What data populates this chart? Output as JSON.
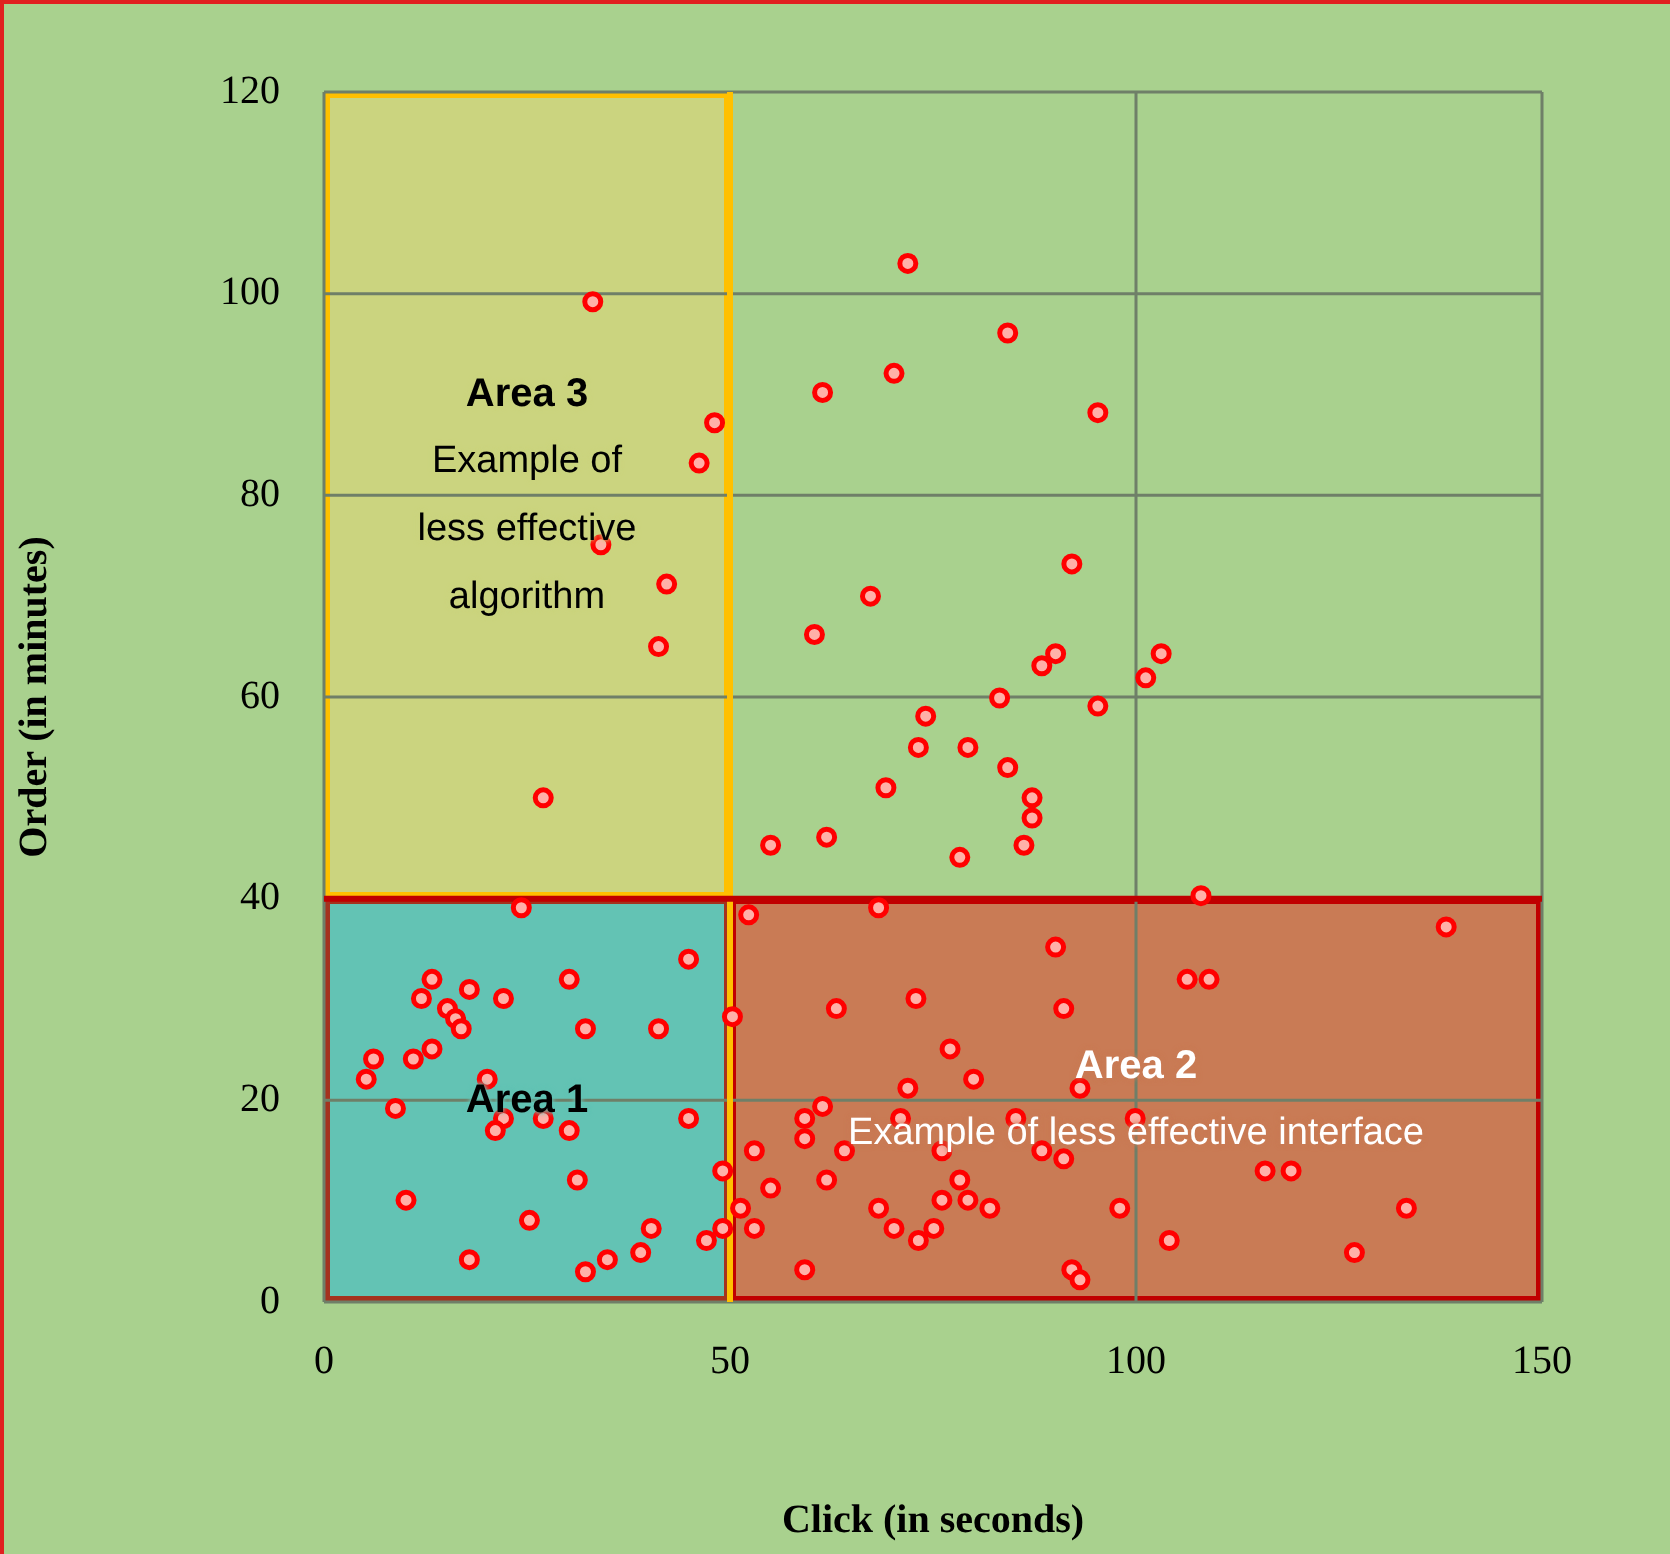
{
  "chart_data": {
    "type": "scatter",
    "xlabel": "Click (in seconds)",
    "ylabel": "Order (in minutes)",
    "x": [
      33.1,
      48.1,
      46.2,
      34.1,
      42.2,
      41.2,
      27.0,
      71.9,
      84.2,
      70.2,
      61.4,
      95.3,
      92.1,
      67.3,
      60.4,
      90.1,
      88.4,
      103.1,
      101.2,
      83.2,
      95.3,
      74.1,
      73.2,
      79.3,
      84.2,
      69.2,
      87.2,
      87.2,
      55.0,
      61.9,
      78.3,
      86.2,
      108.0,
      24.3,
      44.9,
      13.3,
      30.2,
      12.0,
      17.9,
      22.1,
      15.2,
      16.2,
      16.9,
      32.2,
      41.2,
      6.1,
      11.0,
      13.3,
      5.2,
      20.1,
      8.8,
      22.1,
      27.0,
      44.9,
      21.1,
      30.2,
      31.2,
      49.1,
      10.1,
      25.3,
      40.3,
      49.1,
      47.1,
      39.0,
      17.9,
      34.9,
      32.2,
      52.3,
      68.3,
      90.1,
      50.3,
      63.1,
      72.9,
      91.1,
      77.1,
      80.0,
      71.9,
      93.1,
      61.4,
      59.2,
      71.0,
      85.2,
      99.9,
      59.2,
      53.0,
      64.1,
      76.1,
      88.4,
      91.1,
      55.0,
      61.9,
      78.3,
      76.1,
      79.3,
      82.0,
      68.3,
      98.0,
      51.3,
      53.0,
      70.2,
      75.1,
      73.2,
      59.2,
      92.1,
      93.1,
      138.2,
      106.3,
      109.0,
      115.9,
      119.1,
      133.3,
      104.1,
      126.9
    ],
    "values": [
      99.2,
      87.2,
      83.2,
      75.1,
      71.2,
      65.0,
      50.0,
      103.0,
      96.1,
      92.1,
      90.2,
      88.2,
      73.2,
      70.0,
      66.2,
      64.3,
      63.1,
      64.3,
      61.9,
      59.9,
      59.1,
      58.1,
      55.0,
      55.0,
      53.0,
      51.0,
      50.0,
      48.0,
      45.3,
      46.1,
      44.1,
      45.3,
      40.3,
      39.1,
      34.0,
      32.0,
      32.0,
      30.1,
      31.0,
      30.1,
      29.1,
      28.1,
      27.1,
      27.1,
      27.1,
      24.1,
      24.1,
      25.1,
      22.1,
      22.1,
      19.2,
      18.2,
      18.2,
      18.2,
      17.0,
      17.0,
      12.1,
      13.0,
      10.1,
      8.1,
      7.3,
      7.3,
      6.1,
      4.9,
      4.2,
      4.2,
      3.0,
      38.4,
      39.1,
      35.2,
      28.3,
      29.1,
      30.1,
      29.1,
      25.1,
      22.1,
      21.2,
      21.2,
      19.4,
      18.2,
      18.2,
      18.2,
      18.2,
      16.2,
      15.0,
      15.0,
      15.0,
      15.0,
      14.2,
      11.3,
      12.1,
      12.1,
      10.1,
      10.1,
      9.3,
      9.3,
      9.3,
      9.3,
      7.3,
      7.3,
      7.3,
      6.1,
      3.2,
      3.2,
      2.2,
      37.2,
      32.0,
      32.0,
      13.0,
      13.0,
      9.3,
      6.1,
      4.9
    ],
    "color": "#ff0000",
    "marker": "circle",
    "xlim": [
      0,
      150
    ],
    "xticks": [
      0,
      50,
      100,
      150
    ],
    "ylim": [
      0,
      120
    ],
    "yticks": [
      0,
      20,
      40,
      60,
      80,
      100,
      120
    ],
    "grid": true,
    "ref_lines": [
      {
        "axis": "x",
        "value": 50,
        "color": "#ffc000"
      },
      {
        "axis": "y",
        "value": 40,
        "color": "#c00000"
      }
    ],
    "annotations": [
      "Area 3",
      "Example of less effective algorithm",
      "Area 1",
      "Area 2",
      "Example of less effective interface"
    ]
  }
}
